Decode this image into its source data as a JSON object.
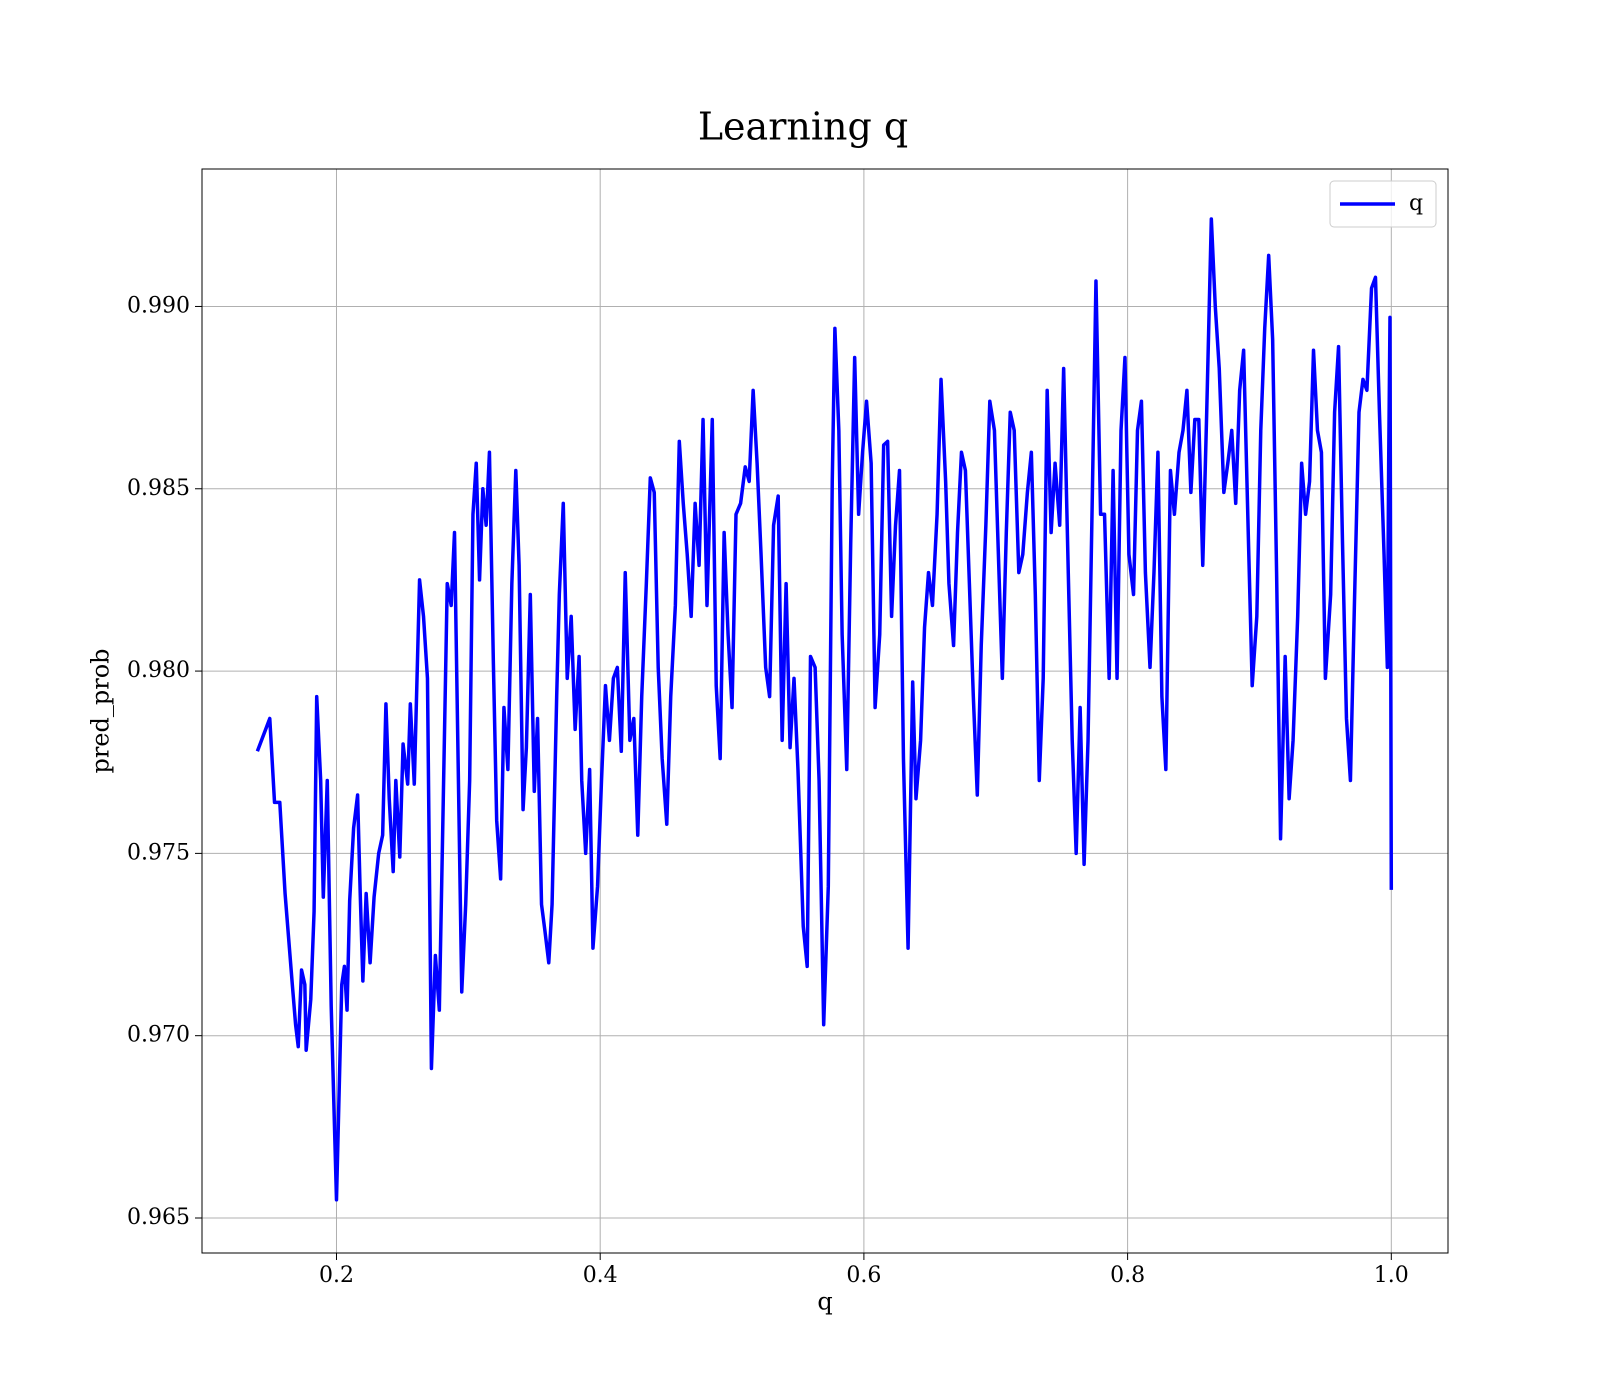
{
  "chart_data": {
    "type": "line",
    "title": "Learning q",
    "xlabel": "q",
    "ylabel": "pred_prob",
    "xlim": [
      0.098,
      1.043
    ],
    "ylim": [
      0.96404,
      0.99377
    ],
    "xticks": [
      0.2,
      0.4,
      0.6,
      0.8,
      {
        "value": 1,
        "label": "1.0"
      }
    ],
    "yticks": [
      0.965,
      {
        "value": 0.97,
        "label": "0.970"
      },
      0.975,
      {
        "value": 0.98,
        "label": "0.980"
      },
      0.985,
      {
        "value": 0.99,
        "label": "0.990"
      }
    ],
    "grid": true,
    "legend": "upper right",
    "series": [
      {
        "name": "q",
        "color": "#0000ff",
        "x": [
          0.14,
          0.1494,
          0.153,
          0.157,
          0.161,
          0.1665,
          0.169,
          0.171,
          0.1735,
          0.176,
          0.177,
          0.1805,
          0.183,
          0.185,
          0.188,
          0.19,
          0.193,
          0.196,
          0.2,
          0.204,
          0.206,
          0.208,
          0.21,
          0.213,
          0.216,
          0.218,
          0.22,
          0.2225,
          0.2255,
          0.2285,
          0.232,
          0.235,
          0.2375,
          0.24,
          0.243,
          0.245,
          0.248,
          0.2505,
          0.254,
          0.256,
          0.259,
          0.263,
          0.266,
          0.269,
          0.272,
          0.275,
          0.278,
          0.281,
          0.284,
          0.287,
          0.2895,
          0.292,
          0.295,
          0.298,
          0.301,
          0.3035,
          0.306,
          0.3085,
          0.311,
          0.3135,
          0.316,
          0.319,
          0.3215,
          0.3245,
          0.327,
          0.33,
          0.333,
          0.336,
          0.3385,
          0.3415,
          0.344,
          0.347,
          0.35,
          0.3525,
          0.3555,
          0.358,
          0.361,
          0.3635,
          0.367,
          0.369,
          0.372,
          0.375,
          0.378,
          0.381,
          0.384,
          0.386,
          0.389,
          0.392,
          0.3945,
          0.398,
          0.401,
          0.404,
          0.407,
          0.41,
          0.413,
          0.416,
          0.419,
          0.4225,
          0.4255,
          0.4285,
          0.4315,
          0.435,
          0.438,
          0.441,
          0.444,
          0.447,
          0.4505,
          0.4535,
          0.457,
          0.46,
          0.463,
          0.466,
          0.469,
          0.472,
          0.475,
          0.478,
          0.481,
          0.485,
          0.488,
          0.491,
          0.494,
          0.497,
          0.5,
          0.503,
          0.5065,
          0.51,
          0.513,
          0.516,
          0.519,
          0.522,
          0.5255,
          0.5285,
          0.5315,
          0.535,
          0.538,
          0.541,
          0.544,
          0.547,
          0.55,
          0.554,
          0.557,
          0.5595,
          0.563,
          0.566,
          0.5695,
          0.573,
          0.576,
          0.578,
          0.581,
          0.5835,
          0.587,
          0.59,
          0.593,
          0.596,
          0.599,
          0.602,
          0.6055,
          0.6085,
          0.612,
          0.615,
          0.618,
          0.621,
          0.624,
          0.627,
          0.63,
          0.6335,
          0.637,
          0.6395,
          0.643,
          0.646,
          0.649,
          0.652,
          0.6555,
          0.6585,
          0.662,
          0.6645,
          0.668,
          0.671,
          0.674,
          0.677,
          0.68,
          0.683,
          0.686,
          0.689,
          0.6925,
          0.6955,
          0.699,
          0.702,
          0.705,
          0.708,
          0.711,
          0.714,
          0.7175,
          0.7205,
          0.724,
          0.727,
          0.73,
          0.733,
          0.736,
          0.739,
          0.742,
          0.745,
          0.7485,
          0.7515,
          0.755,
          0.758,
          0.761,
          0.764,
          0.767,
          0.77,
          0.773,
          0.776,
          0.7795,
          0.7825,
          0.786,
          0.789,
          0.792,
          0.795,
          0.798,
          0.801,
          0.8045,
          0.8075,
          0.8105,
          0.8135,
          0.817,
          0.82,
          0.823,
          0.826,
          0.829,
          0.8325,
          0.8355,
          0.839,
          0.842,
          0.845,
          0.848,
          0.851,
          0.854,
          0.857,
          0.86,
          0.8635,
          0.8665,
          0.8695,
          0.873,
          0.876,
          0.879,
          0.882,
          0.885,
          0.888,
          0.8915,
          0.8945,
          0.898,
          0.901,
          0.904,
          0.907,
          0.91,
          0.913,
          0.916,
          0.9195,
          0.9225,
          0.9255,
          0.929,
          0.932,
          0.935,
          0.938,
          0.941,
          0.944,
          0.947,
          0.95,
          0.954,
          0.957,
          0.96,
          0.963,
          0.966,
          0.969,
          0.972,
          0.9755,
          0.9785,
          0.9815,
          0.985,
          0.988,
          0.991,
          0.9945,
          0.997,
          0.998,
          0.999,
          1.0
        ],
        "values": [
          0.9778,
          0.9787,
          0.9764,
          0.9764,
          0.9739,
          0.9714,
          0.9703,
          0.9697,
          0.9718,
          0.9714,
          0.9696,
          0.971,
          0.9734,
          0.9793,
          0.977,
          0.9738,
          0.977,
          0.9708,
          0.9655,
          0.9714,
          0.9719,
          0.9707,
          0.9737,
          0.9757,
          0.9766,
          0.9739,
          0.9715,
          0.9739,
          0.972,
          0.9738,
          0.975,
          0.9755,
          0.9791,
          0.9765,
          0.9745,
          0.977,
          0.9749,
          0.978,
          0.9769,
          0.9791,
          0.9769,
          0.9825,
          0.9815,
          0.9798,
          0.9691,
          0.9722,
          0.9707,
          0.9765,
          0.9824,
          0.9818,
          0.9838,
          0.9781,
          0.9712,
          0.9736,
          0.977,
          0.9843,
          0.9857,
          0.9825,
          0.985,
          0.984,
          0.986,
          0.9802,
          0.9759,
          0.9743,
          0.979,
          0.9773,
          0.9824,
          0.9855,
          0.9829,
          0.9762,
          0.9779,
          0.9821,
          0.9767,
          0.9787,
          0.9736,
          0.9729,
          0.972,
          0.9736,
          0.9793,
          0.9821,
          0.9846,
          0.9798,
          0.9815,
          0.9784,
          0.9804,
          0.977,
          0.975,
          0.9773,
          0.9724,
          0.9741,
          0.977,
          0.9796,
          0.9781,
          0.9798,
          0.9801,
          0.9778,
          0.9827,
          0.9781,
          0.9787,
          0.9755,
          0.9793,
          0.9824,
          0.9853,
          0.9849,
          0.9801,
          0.9776,
          0.9758,
          0.9793,
          0.9818,
          0.9863,
          0.9846,
          0.9832,
          0.9815,
          0.9846,
          0.9829,
          0.9869,
          0.9818,
          0.9869,
          0.9796,
          0.9776,
          0.9838,
          0.981,
          0.979,
          0.9843,
          0.9846,
          0.9856,
          0.9852,
          0.9877,
          0.9857,
          0.9832,
          0.9801,
          0.9793,
          0.984,
          0.9848,
          0.9781,
          0.9824,
          0.9779,
          0.9798,
          0.9773,
          0.973,
          0.9719,
          0.9804,
          0.9801,
          0.977,
          0.9703,
          0.9741,
          0.9852,
          0.9894,
          0.9866,
          0.981,
          0.9773,
          0.9835,
          0.9886,
          0.9843,
          0.986,
          0.9874,
          0.9857,
          0.979,
          0.981,
          0.9862,
          0.9863,
          0.9815,
          0.984,
          0.9855,
          0.9776,
          0.9724,
          0.9797,
          0.9765,
          0.9781,
          0.9812,
          0.9827,
          0.9818,
          0.9843,
          0.988,
          0.9852,
          0.9824,
          0.9807,
          0.9838,
          0.986,
          0.9855,
          0.9824,
          0.9793,
          0.9766,
          0.9807,
          0.984,
          0.9874,
          0.9866,
          0.9832,
          0.9798,
          0.9838,
          0.9871,
          0.9866,
          0.9827,
          0.9832,
          0.9849,
          0.986,
          0.9821,
          0.977,
          0.9798,
          0.9877,
          0.9838,
          0.9857,
          0.984,
          0.9883,
          0.9827,
          0.9781,
          0.975,
          0.979,
          0.9747,
          0.9781,
          0.9843,
          0.9907,
          0.9843,
          0.9843,
          0.9798,
          0.9855,
          0.9798,
          0.9866,
          0.9886,
          0.9832,
          0.9821,
          0.9866,
          0.9874,
          0.9827,
          0.9801,
          0.9827,
          0.986,
          0.9793,
          0.9773,
          0.9855,
          0.9843,
          0.986,
          0.9866,
          0.9877,
          0.9849,
          0.9869,
          0.9869,
          0.9829,
          0.9871,
          0.9924,
          0.99,
          0.9883,
          0.9849,
          0.9857,
          0.9866,
          0.9846,
          0.9877,
          0.9888,
          0.9838,
          0.9796,
          0.9815,
          0.9866,
          0.9894,
          0.9914,
          0.9891,
          0.9827,
          0.9754,
          0.9804,
          0.9765,
          0.9781,
          0.9815,
          0.9857,
          0.9843,
          0.9852,
          0.9888,
          0.9866,
          0.986,
          0.9798,
          0.9821,
          0.9871,
          0.9889,
          0.9835,
          0.9787,
          0.977,
          0.9818,
          0.9871,
          0.988,
          0.9877,
          0.9905,
          0.9908,
          0.9871,
          0.9832,
          0.9801,
          0.9857,
          0.9897,
          0.974
        ]
      }
    ]
  }
}
